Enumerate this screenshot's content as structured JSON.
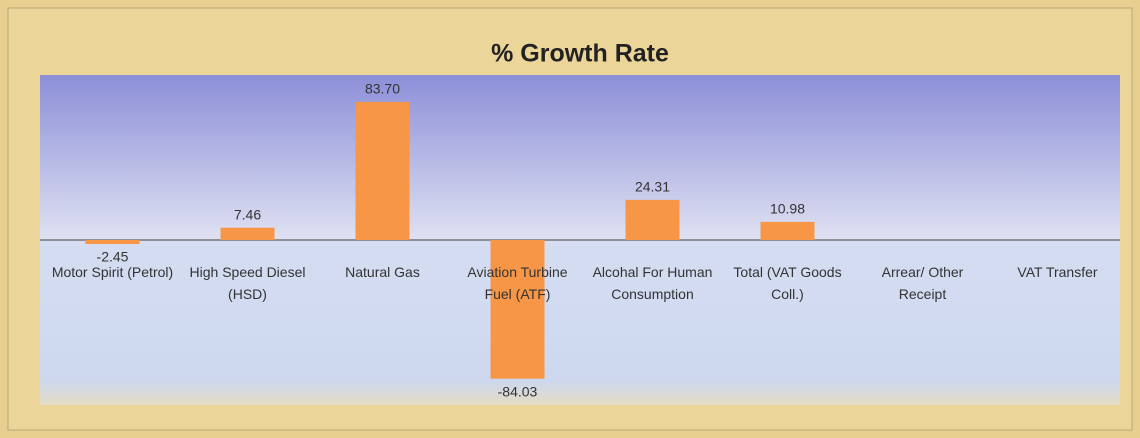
{
  "chart_data": {
    "type": "bar",
    "title": "% Growth Rate",
    "categories": [
      "Motor Spirit (Petrol)",
      "High Speed Diesel (HSD)",
      "Natural Gas",
      "Aviation Turbine Fuel (ATF)",
      "Alcohal For Human Consumption",
      "Total (VAT Goods Coll.)",
      "Arrear/ Other Receipt",
      "VAT Transfer"
    ],
    "values": [
      -2.45,
      7.46,
      83.7,
      -84.03,
      24.31,
      10.98,
      null,
      null
    ],
    "value_labels": [
      "-2.45",
      "7.46",
      "83.70",
      "-84.03",
      "24.31",
      "10.98",
      null,
      null
    ],
    "color": "#f79646",
    "ylim": [
      -100,
      100
    ]
  }
}
